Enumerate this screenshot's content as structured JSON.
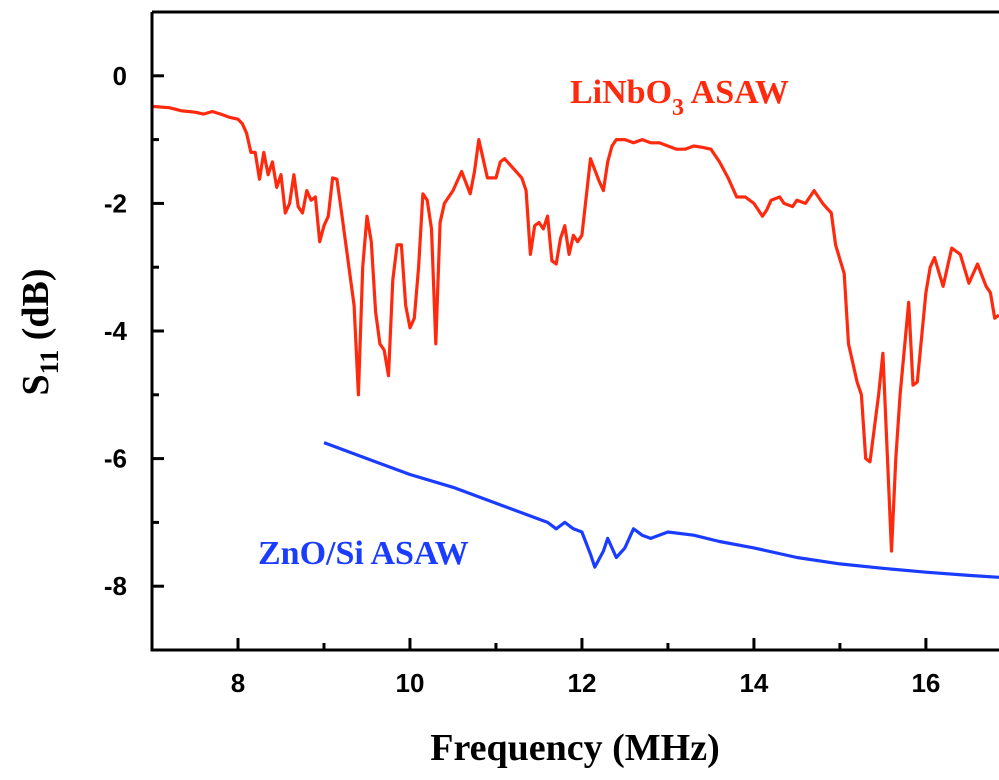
{
  "chart_data": {
    "type": "line",
    "xlabel": "Frequency (MHz)",
    "ylabel": {
      "main": "S",
      "sub": "11",
      "unit": " (dB)"
    },
    "xlim": [
      7,
      16.85
    ],
    "ylim": [
      -9,
      1
    ],
    "x_ticks": [
      8,
      10,
      12,
      14,
      16
    ],
    "y_ticks": [
      0,
      -2,
      -4,
      -6,
      -8
    ],
    "grid": false,
    "series": [
      {
        "name": "LiNbO3 ASAW",
        "label_main": "LiNbO",
        "label_sub": "3",
        "label_tail": " ASAW",
        "color": "#ff2a0e",
        "points": [
          [
            7.0,
            -0.48
          ],
          [
            7.2,
            -0.5
          ],
          [
            7.35,
            -0.55
          ],
          [
            7.5,
            -0.57
          ],
          [
            7.6,
            -0.6
          ],
          [
            7.7,
            -0.56
          ],
          [
            7.8,
            -0.6
          ],
          [
            7.9,
            -0.65
          ],
          [
            8.0,
            -0.68
          ],
          [
            8.05,
            -0.75
          ],
          [
            8.1,
            -0.9
          ],
          [
            8.15,
            -1.2
          ],
          [
            8.2,
            -1.2
          ],
          [
            8.25,
            -1.62
          ],
          [
            8.3,
            -1.2
          ],
          [
            8.35,
            -1.55
          ],
          [
            8.4,
            -1.35
          ],
          [
            8.45,
            -1.75
          ],
          [
            8.5,
            -1.55
          ],
          [
            8.55,
            -2.15
          ],
          [
            8.6,
            -2.0
          ],
          [
            8.65,
            -1.55
          ],
          [
            8.7,
            -2.05
          ],
          [
            8.75,
            -2.15
          ],
          [
            8.8,
            -1.8
          ],
          [
            8.85,
            -1.95
          ],
          [
            8.9,
            -1.9
          ],
          [
            8.95,
            -2.6
          ],
          [
            9.0,
            -2.35
          ],
          [
            9.05,
            -2.2
          ],
          [
            9.1,
            -1.6
          ],
          [
            9.15,
            -1.62
          ],
          [
            9.2,
            -2.1
          ],
          [
            9.3,
            -3.1
          ],
          [
            9.35,
            -3.6
          ],
          [
            9.4,
            -5.0
          ],
          [
            9.45,
            -3.0
          ],
          [
            9.5,
            -2.2
          ],
          [
            9.55,
            -2.6
          ],
          [
            9.6,
            -3.7
          ],
          [
            9.65,
            -4.2
          ],
          [
            9.7,
            -4.3
          ],
          [
            9.75,
            -4.7
          ],
          [
            9.8,
            -3.2
          ],
          [
            9.85,
            -2.65
          ],
          [
            9.9,
            -2.65
          ],
          [
            9.95,
            -3.6
          ],
          [
            10.0,
            -3.95
          ],
          [
            10.05,
            -3.8
          ],
          [
            10.1,
            -3.0
          ],
          [
            10.15,
            -1.85
          ],
          [
            10.2,
            -1.95
          ],
          [
            10.25,
            -2.4
          ],
          [
            10.3,
            -4.2
          ],
          [
            10.35,
            -2.3
          ],
          [
            10.4,
            -2.0
          ],
          [
            10.5,
            -1.8
          ],
          [
            10.6,
            -1.5
          ],
          [
            10.7,
            -1.85
          ],
          [
            10.75,
            -1.5
          ],
          [
            10.8,
            -1.0
          ],
          [
            10.9,
            -1.6
          ],
          [
            11.0,
            -1.6
          ],
          [
            11.05,
            -1.35
          ],
          [
            11.1,
            -1.3
          ],
          [
            11.2,
            -1.45
          ],
          [
            11.3,
            -1.6
          ],
          [
            11.35,
            -1.8
          ],
          [
            11.4,
            -2.8
          ],
          [
            11.45,
            -2.35
          ],
          [
            11.5,
            -2.3
          ],
          [
            11.55,
            -2.4
          ],
          [
            11.6,
            -2.2
          ],
          [
            11.65,
            -2.9
          ],
          [
            11.7,
            -2.95
          ],
          [
            11.75,
            -2.55
          ],
          [
            11.8,
            -2.35
          ],
          [
            11.85,
            -2.8
          ],
          [
            11.9,
            -2.5
          ],
          [
            11.95,
            -2.6
          ],
          [
            12.0,
            -2.5
          ],
          [
            12.1,
            -1.3
          ],
          [
            12.2,
            -1.65
          ],
          [
            12.25,
            -1.8
          ],
          [
            12.3,
            -1.35
          ],
          [
            12.35,
            -1.1
          ],
          [
            12.4,
            -1.0
          ],
          [
            12.5,
            -1.0
          ],
          [
            12.6,
            -1.05
          ],
          [
            12.7,
            -1.0
          ],
          [
            12.8,
            -1.05
          ],
          [
            12.9,
            -1.05
          ],
          [
            13.0,
            -1.1
          ],
          [
            13.1,
            -1.15
          ],
          [
            13.2,
            -1.15
          ],
          [
            13.3,
            -1.1
          ],
          [
            13.4,
            -1.12
          ],
          [
            13.5,
            -1.15
          ],
          [
            13.6,
            -1.35
          ],
          [
            13.7,
            -1.6
          ],
          [
            13.8,
            -1.9
          ],
          [
            13.9,
            -1.9
          ],
          [
            14.0,
            -2.0
          ],
          [
            14.1,
            -2.2
          ],
          [
            14.15,
            -2.1
          ],
          [
            14.2,
            -1.95
          ],
          [
            14.3,
            -1.9
          ],
          [
            14.35,
            -2.0
          ],
          [
            14.45,
            -2.05
          ],
          [
            14.5,
            -1.95
          ],
          [
            14.6,
            -2.0
          ],
          [
            14.7,
            -1.8
          ],
          [
            14.8,
            -2.0
          ],
          [
            14.9,
            -2.15
          ],
          [
            14.95,
            -2.65
          ],
          [
            15.05,
            -3.1
          ],
          [
            15.1,
            -4.2
          ],
          [
            15.2,
            -4.8
          ],
          [
            15.25,
            -5.0
          ],
          [
            15.3,
            -6.0
          ],
          [
            15.35,
            -6.05
          ],
          [
            15.45,
            -5.0
          ],
          [
            15.5,
            -4.35
          ],
          [
            15.6,
            -7.45
          ],
          [
            15.65,
            -6.0
          ],
          [
            15.7,
            -5.0
          ],
          [
            15.8,
            -3.55
          ],
          [
            15.85,
            -4.85
          ],
          [
            15.9,
            -4.8
          ],
          [
            16.0,
            -3.4
          ],
          [
            16.05,
            -3.0
          ],
          [
            16.1,
            -2.85
          ],
          [
            16.2,
            -3.3
          ],
          [
            16.3,
            -2.7
          ],
          [
            16.4,
            -2.8
          ],
          [
            16.5,
            -3.25
          ],
          [
            16.6,
            -2.95
          ],
          [
            16.7,
            -3.3
          ],
          [
            16.75,
            -3.4
          ],
          [
            16.8,
            -3.8
          ],
          [
            16.85,
            -3.75
          ]
        ]
      },
      {
        "name": "ZnO/Si ASAW",
        "label_main": "ZnO/Si ASAW",
        "label_sub": "",
        "label_tail": "",
        "color": "#1a3cff",
        "points": [
          [
            9.0,
            -5.75
          ],
          [
            9.5,
            -6.0
          ],
          [
            10.0,
            -6.25
          ],
          [
            10.5,
            -6.45
          ],
          [
            11.0,
            -6.7
          ],
          [
            11.4,
            -6.9
          ],
          [
            11.6,
            -7.0
          ],
          [
            11.7,
            -7.1
          ],
          [
            11.8,
            -7.0
          ],
          [
            11.9,
            -7.1
          ],
          [
            12.0,
            -7.15
          ],
          [
            12.1,
            -7.5
          ],
          [
            12.15,
            -7.7
          ],
          [
            12.25,
            -7.45
          ],
          [
            12.3,
            -7.25
          ],
          [
            12.4,
            -7.55
          ],
          [
            12.5,
            -7.4
          ],
          [
            12.6,
            -7.1
          ],
          [
            12.7,
            -7.2
          ],
          [
            12.8,
            -7.25
          ],
          [
            13.0,
            -7.15
          ],
          [
            13.3,
            -7.2
          ],
          [
            13.6,
            -7.3
          ],
          [
            14.0,
            -7.4
          ],
          [
            14.5,
            -7.55
          ],
          [
            15.0,
            -7.65
          ],
          [
            15.5,
            -7.72
          ],
          [
            16.0,
            -7.78
          ],
          [
            16.5,
            -7.83
          ],
          [
            16.85,
            -7.86
          ]
        ]
      }
    ]
  }
}
